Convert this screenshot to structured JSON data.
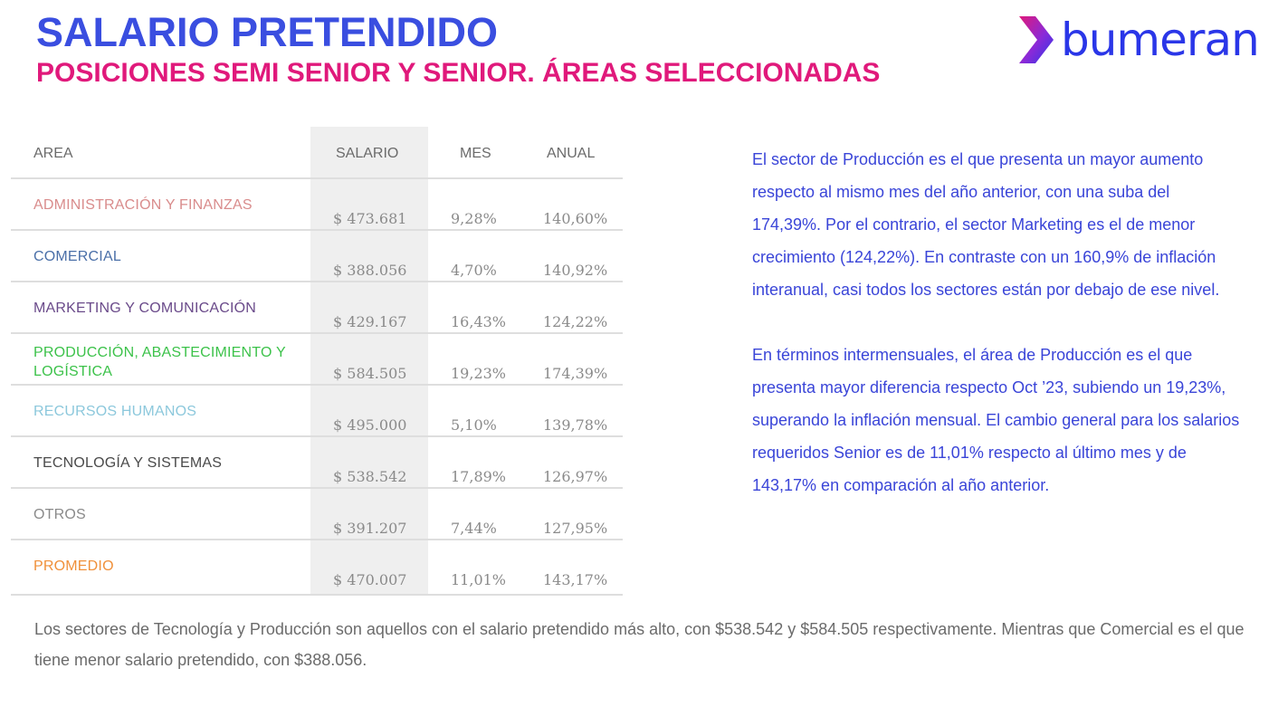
{
  "header": {
    "title": "SALARIO PRETENDIDO",
    "subtitle": "POSICIONES SEMI SENIOR Y SENIOR. ÁREAS SELECCIONADAS"
  },
  "logo": {
    "text": "bumeran",
    "icon": "bumeran-arrow-logo-icon",
    "colors": [
      "#e0197b",
      "#2a36e8"
    ]
  },
  "table": {
    "headers": {
      "area": "AREA",
      "salario": "SALARIO",
      "mes": "MES",
      "anual": "ANUAL"
    },
    "rows": [
      {
        "area": "ADMINISTRACIÓN Y FINANZAS",
        "color": "#d98c8c",
        "salario": "$ 473.681",
        "mes": "9,28%",
        "anual": "140,60%"
      },
      {
        "area": "COMERCIAL",
        "color": "#4a6fa8",
        "salario": "$ 388.056",
        "mes": "4,70%",
        "anual": "140,92%"
      },
      {
        "area": "MARKETING Y COMUNICACIÓN",
        "color": "#6a4a8a",
        "salario": "$ 429.167",
        "mes": "16,43%",
        "anual": "124,22%"
      },
      {
        "area": "PRODUCCIÓN, ABASTECIMIENTO Y LOGÍSTICA",
        "color": "#3cc24a",
        "salario": "$ 584.505",
        "mes": "19,23%",
        "anual": "174,39%"
      },
      {
        "area": "RECURSOS HUMANOS",
        "color": "#8cc8dc",
        "salario": "$ 495.000",
        "mes": "5,10%",
        "anual": "139,78%"
      },
      {
        "area": "TECNOLOGÍA Y SISTEMAS",
        "color": "#4a4a4a",
        "salario": "$ 538.542",
        "mes": "17,89%",
        "anual": "126,97%"
      },
      {
        "area": "OTROS",
        "color": "#8a8a8a",
        "salario": "$ 391.207",
        "mes": "7,44%",
        "anual": "127,95%"
      },
      {
        "area": "PROMEDIO",
        "color": "#f0903a",
        "salario": "$ 470.007",
        "mes": "11,01%",
        "anual": "143,17%"
      }
    ]
  },
  "side_text": {
    "paragraph1": "El sector de Producción es el que presenta un mayor aumento respecto al mismo mes del año anterior, con una suba del 174,39%. Por el contrario, el sector Marketing es el de menor crecimiento (124,22%). En contraste con un 160,9% de inflación interanual, casi todos los sectores están por debajo de ese nivel.",
    "paragraph2": "En términos intermensuales, el área de Producción es el que presenta mayor diferencia respecto Oct ’23, subiendo un 19,23%, superando la inflación mensual. El cambio general para los salarios requeridos Senior es de 11,01% respecto al último mes y de 143,17% en comparación al año anterior."
  },
  "footer": {
    "text": "Los sectores de Tecnología y Producción son aquellos con el salario pretendido más alto, con $538.542 y $584.505 respectivamente. Mientras que Comercial es el que tiene menor salario pretendido, con $388.056."
  }
}
